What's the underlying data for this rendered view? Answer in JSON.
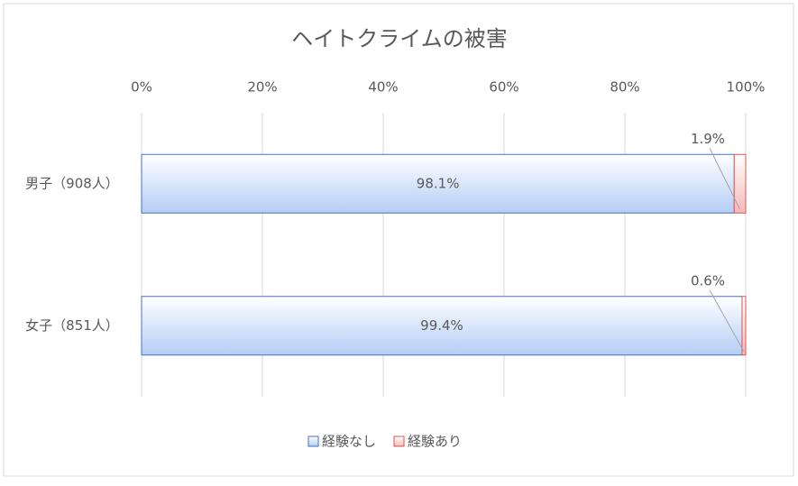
{
  "chart_data": {
    "type": "bar",
    "orientation": "horizontal",
    "stacked": true,
    "title": "ヘイトクライムの被害",
    "categories": [
      "男子（908人）",
      "女子（851人）"
    ],
    "series": [
      {
        "name": "経験なし",
        "color": "#b4cdf5",
        "values": [
          98.1,
          99.4
        ],
        "value_labels": [
          "98.1%",
          "99.4%"
        ]
      },
      {
        "name": "経験あり",
        "color": "#f7b8b8",
        "values": [
          1.9,
          0.6
        ],
        "value_labels": [
          "1.9%",
          "0.6%"
        ]
      }
    ],
    "xlim": [
      0,
      100
    ],
    "xticks": [
      {
        "value": 0,
        "label": "0%"
      },
      {
        "value": 20,
        "label": "20%"
      },
      {
        "value": 40,
        "label": "40%"
      },
      {
        "value": 60,
        "label": "60%"
      },
      {
        "value": 80,
        "label": "80%"
      },
      {
        "value": 100,
        "label": "100%"
      }
    ],
    "grid": true,
    "legend": "bottom"
  }
}
